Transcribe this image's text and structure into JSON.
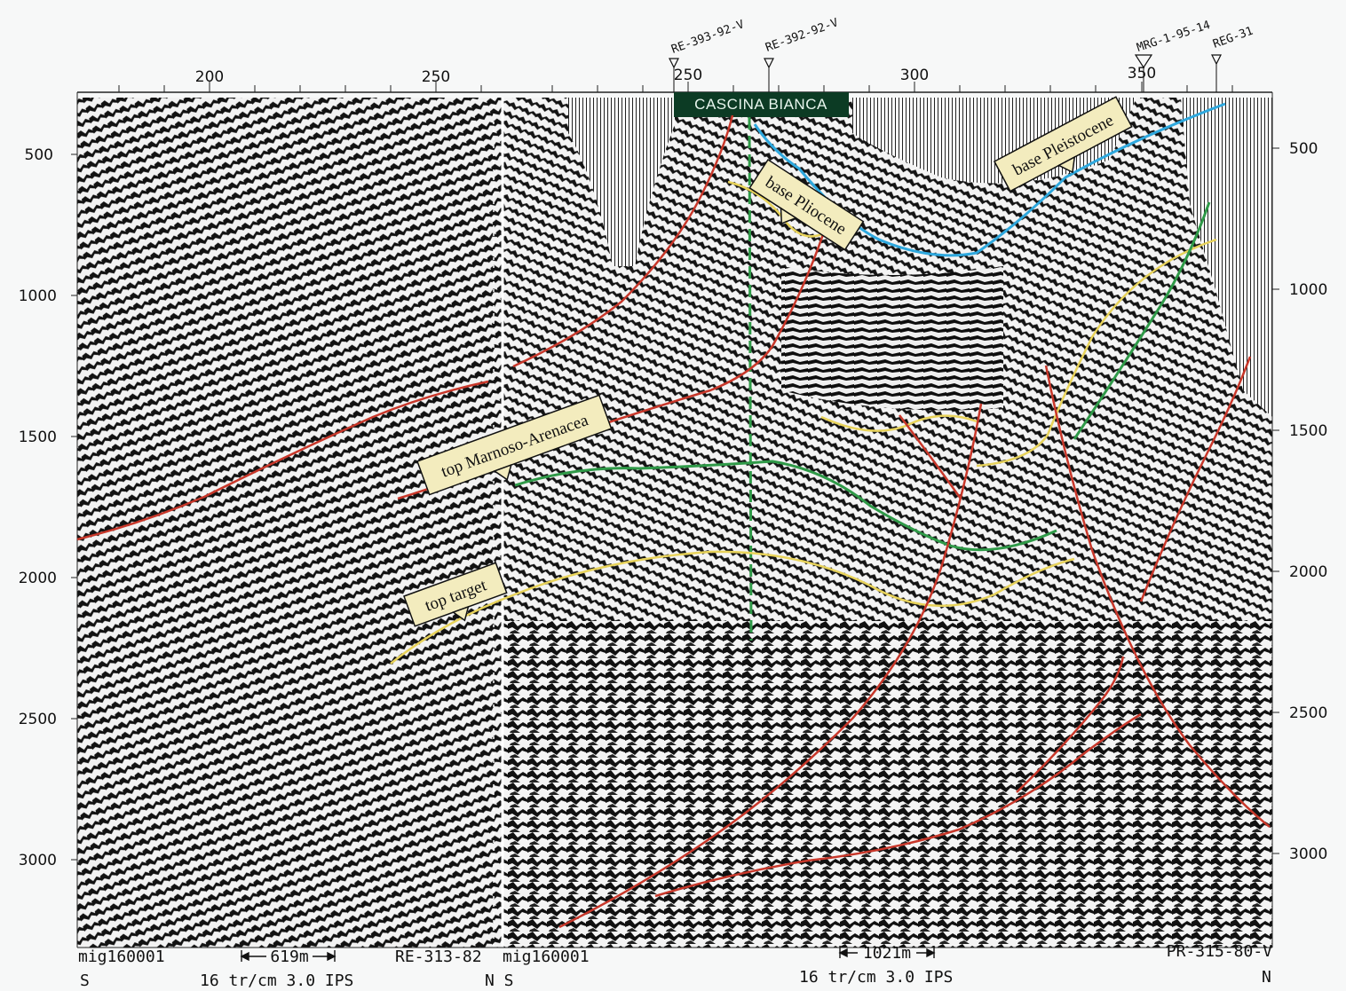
{
  "header": {
    "top_ticks_left": [
      "200",
      "250"
    ],
    "top_ticks_right": [
      "250",
      "300",
      "350"
    ],
    "location_title": "CASCINA BIANCA",
    "wells": [
      "RE-393-92-V",
      "RE-392-92-V",
      "MRG-1-95-14",
      "REG-31"
    ]
  },
  "left_axis": {
    "ticks": [
      "500",
      "1000",
      "1500",
      "2000",
      "2500",
      "3000"
    ]
  },
  "right_axis": {
    "ticks": [
      "500",
      "1000",
      "1500",
      "2000",
      "2500",
      "3000"
    ]
  },
  "horizon_labels": {
    "base_pliocene": "base Pliocene",
    "base_pleistocene": "base Pleistocene",
    "top_marnoso": "top Marnoso-Arenacea",
    "top_target": "top target"
  },
  "footer": {
    "left_line_name": "mig160001",
    "left_scale": "619m",
    "tie_line": "RE-313-82",
    "right_line_name": "mig160001",
    "right_scale": "1021m",
    "right_tie_line": "PR-315-80-V",
    "left_dir_start": "S",
    "left_params": "16 tr/cm 3.0 IPS",
    "mid_dirs": "N S",
    "right_params": "16 tr/cm 3.0 IPS",
    "right_dir_end": "N"
  },
  "colors": {
    "fault_red": "#c8372a",
    "horizon_yellow": "#e8d35a",
    "horizon_green": "#2f9a48",
    "horizon_blue": "#2ea8de",
    "label_fill": "#f3ecbe",
    "title_fill": "#0c3b24"
  }
}
